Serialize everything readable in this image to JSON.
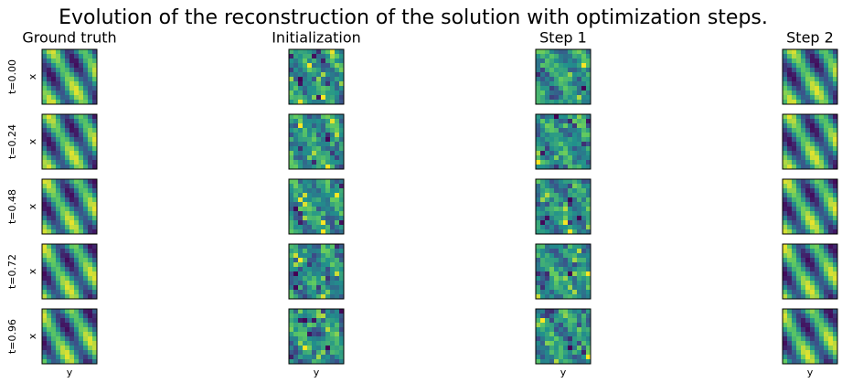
{
  "chart_data": {
    "type": "image-grid",
    "title": "Evolution of the reconstruction of the solution with optimization steps.",
    "columns": [
      "Ground truth",
      "Initialization",
      "Step 1",
      "Step 2"
    ],
    "rows": [
      "t=0.00",
      "t=0.24",
      "t=0.48",
      "t=0.72",
      "t=0.96"
    ],
    "xlabel": "y",
    "ylabel": "x"
  }
}
